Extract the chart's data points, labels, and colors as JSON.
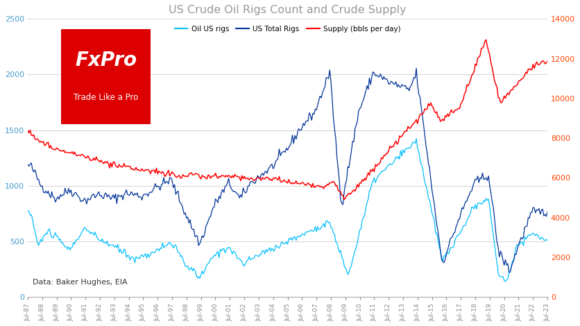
{
  "title": "US Crude Oil Rigs Count and Crude Supply",
  "title_color": "#999999",
  "legend_labels": [
    "Oil US rigs",
    "US Total Rigs",
    "Supply (bbls per day)"
  ],
  "oil_rigs_color": "#00BFFF",
  "total_rigs_color": "#003399",
  "supply_color": "#FF0000",
  "ylabel_left_range": [
    0,
    2500
  ],
  "ylabel_right_range": [
    0,
    14000
  ],
  "ylabel_left_ticks": [
    0,
    500,
    1000,
    1500,
    2000,
    2500
  ],
  "ylabel_right_ticks": [
    0,
    2000,
    4000,
    6000,
    8000,
    10000,
    12000,
    14000
  ],
  "watermark_text": "FxPro",
  "watermark_subtext": "Trade Like a Pro",
  "source_text": "Data: Baker Hughes, EIA",
  "background_color": "#FFFFFF",
  "grid_color": "#CCCCCC",
  "fxpro_bg": "#DD0000",
  "left_tick_color": "#4499CC",
  "right_tick_color": "#FF4400"
}
